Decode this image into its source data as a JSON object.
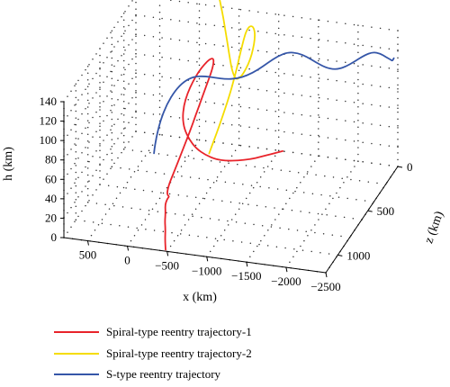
{
  "chart_data": {
    "type": "line",
    "projection": "3d",
    "grid": true,
    "legend_position": "bottom",
    "xlabel": "x (km)",
    "ylabel": "h (km)",
    "zlabel": "z (km)",
    "x_ticks": [
      {
        "label": "500",
        "value": 500
      },
      {
        "label": "0",
        "value": 0
      },
      {
        "label": "−500",
        "value": -500
      },
      {
        "label": "−1000",
        "value": -1000
      },
      {
        "label": "−1500",
        "value": -1500
      },
      {
        "label": "−2000",
        "value": -2000
      },
      {
        "label": "−2500",
        "value": -2500
      }
    ],
    "h_ticks": [
      {
        "label": "0",
        "value": 0
      },
      {
        "label": "20",
        "value": 20
      },
      {
        "label": "40",
        "value": 40
      },
      {
        "label": "60",
        "value": 60
      },
      {
        "label": "80",
        "value": 80
      },
      {
        "label": "100",
        "value": 100
      },
      {
        "label": "120",
        "value": 120
      },
      {
        "label": "140",
        "value": 140
      }
    ],
    "z_ticks": [
      {
        "label": "0",
        "value": 0
      },
      {
        "label": "500",
        "value": 500
      },
      {
        "label": "1000",
        "value": 1000
      }
    ],
    "xlim": [
      800,
      -2500
    ],
    "hlim": [
      0,
      140
    ],
    "zlim": [
      0,
      1200
    ],
    "series": [
      {
        "name": "Spiral-type reentry trajectory-1",
        "color": "#e8232a",
        "points": [
          [
            -1050,
            0,
            0
          ],
          [
            -950,
            2,
            70
          ],
          [
            -880,
            5,
            140
          ],
          [
            -800,
            8,
            210
          ],
          [
            -700,
            12,
            280
          ],
          [
            -600,
            16,
            340
          ],
          [
            -500,
            20,
            380
          ],
          [
            -380,
            25,
            400
          ],
          [
            -260,
            30,
            395
          ],
          [
            -150,
            36,
            370
          ],
          [
            -60,
            42,
            330
          ],
          [
            0,
            48,
            280
          ],
          [
            30,
            55,
            220
          ],
          [
            30,
            62,
            160
          ],
          [
            0,
            70,
            110
          ],
          [
            -50,
            78,
            80
          ],
          [
            -120,
            86,
            75
          ],
          [
            -200,
            94,
            95
          ],
          [
            -280,
            100,
            140
          ],
          [
            -340,
            103,
            210
          ],
          [
            -380,
            103,
            290
          ],
          [
            -390,
            98,
            380
          ],
          [
            -390,
            91,
            470
          ],
          [
            -390,
            83,
            570
          ],
          [
            -390,
            74,
            680
          ],
          [
            -390,
            66,
            800
          ],
          [
            -390,
            58,
            920
          ],
          [
            -390,
            52,
            1020
          ],
          [
            -410,
            49,
            1080
          ],
          [
            -440,
            49,
            1110
          ],
          [
            -460,
            48,
            1110
          ],
          [
            -440,
            46,
            1120
          ],
          [
            -430,
            42,
            1140
          ],
          [
            -450,
            36,
            1160
          ],
          [
            -450,
            28,
            1170
          ],
          [
            -460,
            20,
            1175
          ],
          [
            -460,
            10,
            1180
          ],
          [
            -470,
            0,
            1185
          ]
        ]
      },
      {
        "name": "Spiral-type reentry trajectory-2",
        "color": "#f5dc00",
        "points": [
          [
            -250,
            149,
            0
          ],
          [
            -300,
            146,
            40
          ],
          [
            -360,
            142,
            90
          ],
          [
            -420,
            137,
            140
          ],
          [
            -480,
            131,
            190
          ],
          [
            -540,
            125,
            240
          ],
          [
            -600,
            119,
            290
          ],
          [
            -650,
            113,
            330
          ],
          [
            -700,
            108,
            360
          ],
          [
            -740,
            104,
            370
          ],
          [
            -770,
            103,
            330
          ],
          [
            -790,
            106,
            270
          ],
          [
            -800,
            111,
            210
          ],
          [
            -790,
            116,
            150
          ],
          [
            -770,
            121,
            95
          ],
          [
            -740,
            125,
            55
          ],
          [
            -700,
            128,
            35
          ],
          [
            -660,
            128,
            40
          ],
          [
            -640,
            125,
            65
          ],
          [
            -640,
            120,
            110
          ],
          [
            -650,
            114,
            170
          ],
          [
            -670,
            107,
            250
          ],
          [
            -690,
            100,
            340
          ],
          [
            -705,
            93,
            430
          ],
          [
            -715,
            86,
            530
          ],
          [
            -720,
            79,
            620
          ],
          [
            -720,
            72,
            710
          ],
          [
            -720,
            66,
            790
          ]
        ]
      },
      {
        "name": "S-type reentry trajectory",
        "color": "#3556a8",
        "points": [
          [
            -2450,
            111,
            0
          ],
          [
            -2470,
            113,
            50
          ],
          [
            -2470,
            117,
            80
          ],
          [
            -2420,
            120,
            90
          ],
          [
            -2330,
            121,
            70
          ],
          [
            -2220,
            119,
            45
          ],
          [
            -2110,
            114,
            40
          ],
          [
            -2000,
            108,
            60
          ],
          [
            -1900,
            104,
            90
          ],
          [
            -1800,
            103,
            120
          ],
          [
            -1690,
            106,
            140
          ],
          [
            -1580,
            111,
            150
          ],
          [
            -1470,
            116,
            155
          ],
          [
            -1360,
            119,
            160
          ],
          [
            -1250,
            120,
            175
          ],
          [
            -1140,
            117,
            200
          ],
          [
            -1040,
            112,
            230
          ],
          [
            -940,
            107,
            270
          ],
          [
            -840,
            104,
            310
          ],
          [
            -740,
            104,
            360
          ],
          [
            -640,
            107,
            410
          ],
          [
            -540,
            112,
            460
          ],
          [
            -440,
            117,
            510
          ],
          [
            -350,
            120,
            560
          ],
          [
            -270,
            119,
            610
          ],
          [
            -200,
            114,
            670
          ],
          [
            -150,
            106,
            740
          ],
          [
            -125,
            96,
            810
          ],
          [
            -118,
            86,
            860
          ],
          [
            -115,
            78,
            890
          ],
          [
            -112,
            70,
            905
          ]
        ]
      }
    ]
  }
}
